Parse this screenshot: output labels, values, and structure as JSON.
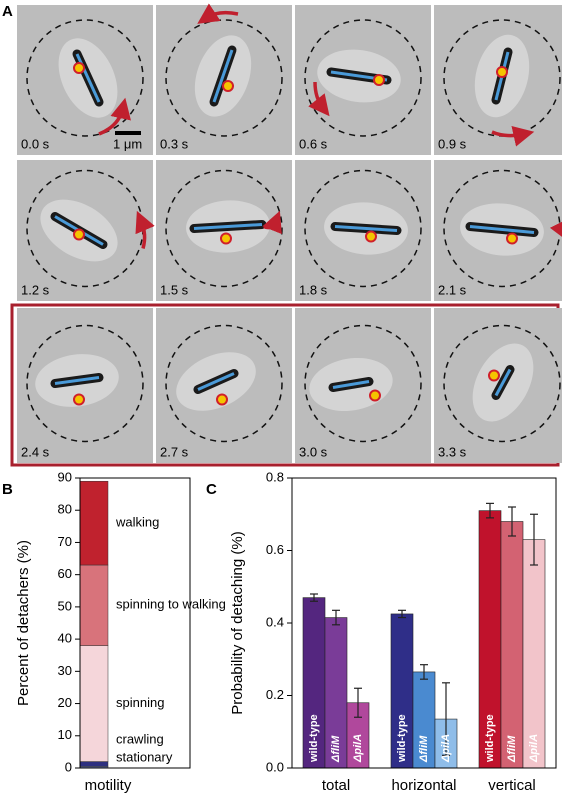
{
  "panel_a": {
    "label": "A",
    "scale_bar": "1 μm",
    "frames": [
      {
        "time": "0.0 s"
      },
      {
        "time": "0.3 s"
      },
      {
        "time": "0.6 s"
      },
      {
        "time": "0.9 s"
      },
      {
        "time": "1.2 s"
      },
      {
        "time": "1.5 s"
      },
      {
        "time": "1.8 s"
      },
      {
        "time": "2.1 s"
      },
      {
        "time": "2.4 s"
      },
      {
        "time": "2.7 s"
      },
      {
        "time": "3.0 s"
      },
      {
        "time": "3.3 s"
      }
    ]
  },
  "chart_data": [
    {
      "type": "stacked_bar",
      "label": "B",
      "ylabel": "Percent of detachers (%)",
      "categories": [
        "motility"
      ],
      "ylim": [
        0,
        90
      ],
      "yticks": [
        0,
        10,
        20,
        30,
        40,
        50,
        60,
        70,
        80,
        90
      ],
      "series": [
        {
          "name": "stationary",
          "color": "#6a78b0",
          "values": [
            0.5
          ]
        },
        {
          "name": "crawling",
          "color": "#2e3080",
          "values": [
            1.5
          ]
        },
        {
          "name": "spinning",
          "color": "#f5d6da",
          "values": [
            36
          ]
        },
        {
          "name": "spinning to walking",
          "color": "#d8737b",
          "values": [
            25
          ]
        },
        {
          "name": "walking",
          "color": "#c0222e",
          "values": [
            26
          ]
        }
      ]
    },
    {
      "type": "grouped_bar",
      "label": "C",
      "ylabel": "Probability of detaching (%)",
      "ylim": [
        0,
        0.8
      ],
      "yticks": [
        {
          "value": 0,
          "label": "0.0"
        },
        0.2,
        0.4,
        0.6,
        0.8
      ],
      "groups": [
        {
          "name": "total",
          "bars": [
            {
              "label": "wild-type",
              "value": 0.47,
              "error": 0.01,
              "color": "#54267f"
            },
            {
              "label": "ΔfliM",
              "value": 0.415,
              "error": 0.02,
              "color": "#7a3c98"
            },
            {
              "label": "ΔpilA",
              "value": 0.18,
              "error": 0.04,
              "color": "#b0489c"
            }
          ]
        },
        {
          "name": "horizontal",
          "bars": [
            {
              "label": "wild-type",
              "value": 0.425,
              "error": 0.01,
              "color": "#2f2e88"
            },
            {
              "label": "ΔfliM",
              "value": 0.265,
              "error": 0.02,
              "color": "#4a8ad0"
            },
            {
              "label": "ΔpilA",
              "value": 0.135,
              "error": 0.1,
              "color": "#8fbde9"
            }
          ]
        },
        {
          "name": "vertical",
          "bars": [
            {
              "label": "wild-type",
              "value": 0.71,
              "error": 0.02,
              "color": "#c0122c"
            },
            {
              "label": "ΔfliM",
              "value": 0.68,
              "error": 0.04,
              "color": "#d36272"
            },
            {
              "label": "ΔpilA",
              "value": 0.63,
              "error": 0.07,
              "color": "#f2c4ca"
            }
          ]
        }
      ]
    }
  ]
}
